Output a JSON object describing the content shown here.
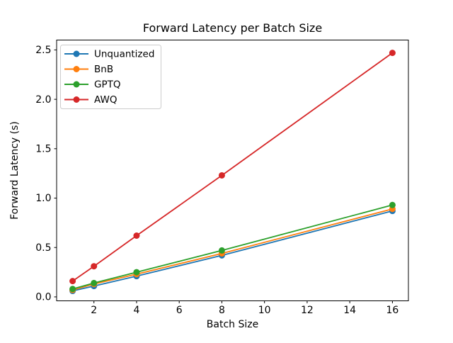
{
  "figure": {
    "background": "#ffffff",
    "axis_color": "#000000",
    "legend_border_color": "#cccccc",
    "legend_background": "#ffffff"
  },
  "chart_data": {
    "type": "line",
    "title": "Forward Latency per Batch Size",
    "xlabel": "Batch Size",
    "ylabel": "Forward Latency (s)",
    "x": [
      1,
      2,
      4,
      8,
      16
    ],
    "series": [
      {
        "name": "Unquantized",
        "color": "#1f77b4",
        "values": [
          0.06,
          0.11,
          0.21,
          0.42,
          0.87
        ]
      },
      {
        "name": "BnB",
        "color": "#ff7f0e",
        "values": [
          0.07,
          0.13,
          0.23,
          0.44,
          0.89
        ]
      },
      {
        "name": "GPTQ",
        "color": "#2ca02c",
        "values": [
          0.08,
          0.14,
          0.25,
          0.47,
          0.93
        ]
      },
      {
        "name": "AWQ",
        "color": "#d62728",
        "values": [
          0.16,
          0.31,
          0.62,
          1.23,
          2.47
        ]
      }
    ],
    "xtick_values": [
      2,
      4,
      6,
      8,
      10,
      12,
      14,
      16
    ],
    "xtick_labels": [
      "2",
      "4",
      "6",
      "8",
      "10",
      "12",
      "14",
      "16"
    ],
    "ytick_values": [
      0,
      0.5,
      1.0,
      1.5,
      2.0,
      2.5
    ],
    "ytick_labels": [
      "0.0",
      "0.5",
      "1.0",
      "1.5",
      "2.0",
      "2.5"
    ],
    "xlim": [
      0.25,
      16.75
    ],
    "ylim": [
      -0.04,
      2.6
    ],
    "grid": false,
    "marker": "o",
    "legend_position": "upper-left",
    "legend_entries": [
      "Unquantized",
      "BnB",
      "GPTQ",
      "AWQ"
    ]
  }
}
